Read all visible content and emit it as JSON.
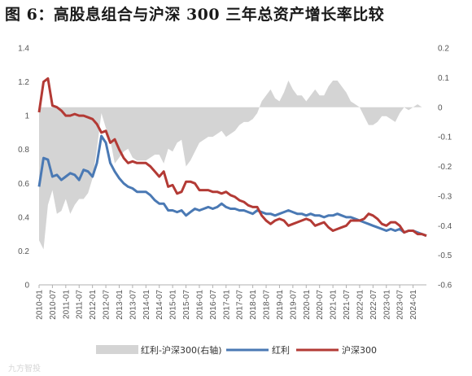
{
  "figure_title": "图 6：高股息组合与沪深 300 三年总资产增长率比较",
  "watermark": "九方智投",
  "colors": {
    "dividend": "#4a79b4",
    "hs300": "#b33a35",
    "diff": "#d4d4d4",
    "axis": "#b0b0b0"
  },
  "chart_data": {
    "type": "line",
    "title": "",
    "xlabel": "",
    "ylabel": "",
    "ylim": [
      0,
      1.4
    ],
    "yticks": [
      "0",
      "0.2",
      "0.4",
      "0.6",
      "0.8",
      "1",
      "1.2",
      "1.4"
    ],
    "y2lim": [
      -0.6,
      0.2
    ],
    "y2ticks": [
      "-0.6",
      "-0.5",
      "-0.4",
      "-0.3",
      "-0.2",
      "-0.1",
      "0",
      "0.1",
      "0.2"
    ],
    "legend_position": "bottom",
    "grid": false,
    "x": [
      "2010-01",
      "2010-03",
      "2010-05",
      "2010-07",
      "2010-09",
      "2010-11",
      "2011-01",
      "2011-03",
      "2011-05",
      "2011-07",
      "2011-09",
      "2011-11",
      "2012-01",
      "2012-03",
      "2012-05",
      "2012-07",
      "2012-09",
      "2012-11",
      "2013-01",
      "2013-03",
      "2013-05",
      "2013-07",
      "2013-09",
      "2013-11",
      "2014-01",
      "2014-03",
      "2014-05",
      "2014-07",
      "2014-09",
      "2014-11",
      "2015-01",
      "2015-03",
      "2015-05",
      "2015-07",
      "2015-09",
      "2015-11",
      "2016-01",
      "2016-03",
      "2016-05",
      "2016-07",
      "2016-09",
      "2016-11",
      "2017-01",
      "2017-03",
      "2017-05",
      "2017-07",
      "2017-09",
      "2017-11",
      "2018-01",
      "2018-03",
      "2018-05",
      "2018-07",
      "2018-09",
      "2018-11",
      "2019-01",
      "2019-03",
      "2019-05",
      "2019-07",
      "2019-09",
      "2019-11",
      "2020-01",
      "2020-03",
      "2020-05",
      "2020-07",
      "2020-09",
      "2020-11",
      "2021-01",
      "2021-03",
      "2021-05",
      "2021-07",
      "2021-09",
      "2021-11",
      "2022-01",
      "2022-03",
      "2022-05",
      "2022-07",
      "2022-09",
      "2022-11",
      "2023-01",
      "2023-03",
      "2023-05",
      "2023-07",
      "2023-09",
      "2023-11",
      "2024-01",
      "2024-03",
      "2024-05",
      "2024-07"
    ],
    "xticks": [
      "2010-01",
      "2010-07",
      "2011-01",
      "2011-07",
      "2012-01",
      "2012-07",
      "2013-01",
      "2013-07",
      "2014-01",
      "2014-07",
      "2015-01",
      "2015-07",
      "2016-01",
      "2016-07",
      "2017-01",
      "2017-07",
      "2018-01",
      "2018-07",
      "2019-01",
      "2019-07",
      "2020-01",
      "2020-07",
      "2021-01",
      "2021-07",
      "2022-01",
      "2022-07",
      "2023-01",
      "2023-07",
      "2024-01"
    ],
    "series": [
      {
        "name": "红利-沪深300(右轴)",
        "type": "area",
        "axis": "right",
        "values": [
          -0.45,
          -0.48,
          -0.33,
          -0.28,
          -0.36,
          -0.35,
          -0.31,
          -0.36,
          -0.33,
          -0.31,
          -0.31,
          -0.29,
          -0.24,
          -0.14,
          -0.02,
          -0.07,
          -0.11,
          -0.19,
          -0.17,
          -0.15,
          -0.14,
          -0.17,
          -0.18,
          -0.18,
          -0.18,
          -0.17,
          -0.16,
          -0.16,
          -0.19,
          -0.14,
          -0.15,
          -0.12,
          -0.11,
          -0.2,
          -0.18,
          -0.15,
          -0.12,
          -0.11,
          -0.1,
          -0.1,
          -0.09,
          -0.08,
          -0.1,
          -0.09,
          -0.08,
          -0.06,
          -0.05,
          -0.05,
          -0.04,
          -0.02,
          0.02,
          0.04,
          0.06,
          0.03,
          0.02,
          0.05,
          0.09,
          0.06,
          0.04,
          0.04,
          0.02,
          0.04,
          0.06,
          0.04,
          0.04,
          0.07,
          0.09,
          0.09,
          0.07,
          0.05,
          0.02,
          0.01,
          0.0,
          -0.03,
          -0.06,
          -0.06,
          -0.05,
          -0.03,
          -0.03,
          -0.04,
          -0.05,
          -0.02,
          0.0,
          -0.01,
          0.0,
          0.01,
          0.0,
          0.0
        ]
      },
      {
        "name": "红利",
        "type": "line",
        "axis": "left",
        "values": [
          0.58,
          0.75,
          0.74,
          0.64,
          0.65,
          0.62,
          0.64,
          0.66,
          0.65,
          0.62,
          0.68,
          0.67,
          0.64,
          0.72,
          0.88,
          0.84,
          0.72,
          0.67,
          0.63,
          0.6,
          0.58,
          0.57,
          0.55,
          0.55,
          0.55,
          0.53,
          0.5,
          0.48,
          0.48,
          0.44,
          0.44,
          0.43,
          0.44,
          0.41,
          0.43,
          0.45,
          0.44,
          0.45,
          0.46,
          0.45,
          0.46,
          0.48,
          0.46,
          0.45,
          0.45,
          0.44,
          0.44,
          0.43,
          0.42,
          0.44,
          0.43,
          0.42,
          0.42,
          0.41,
          0.42,
          0.43,
          0.44,
          0.43,
          0.42,
          0.42,
          0.41,
          0.42,
          0.41,
          0.41,
          0.4,
          0.41,
          0.41,
          0.42,
          0.41,
          0.4,
          0.4,
          0.39,
          0.38,
          0.37,
          0.36,
          0.35,
          0.34,
          0.33,
          0.32,
          0.33,
          0.32,
          0.33,
          0.31,
          0.32,
          0.32,
          0.31,
          0.3,
          0.29
        ]
      },
      {
        "name": "沪深300",
        "type": "line",
        "axis": "left",
        "values": [
          1.02,
          1.2,
          1.22,
          1.06,
          1.05,
          1.03,
          1.0,
          1.0,
          1.01,
          1.0,
          1.0,
          0.99,
          0.98,
          0.95,
          0.9,
          0.91,
          0.84,
          0.86,
          0.8,
          0.75,
          0.72,
          0.73,
          0.72,
          0.72,
          0.72,
          0.7,
          0.67,
          0.64,
          0.67,
          0.58,
          0.59,
          0.54,
          0.55,
          0.61,
          0.61,
          0.6,
          0.56,
          0.56,
          0.56,
          0.55,
          0.55,
          0.54,
          0.55,
          0.53,
          0.52,
          0.5,
          0.49,
          0.47,
          0.46,
          0.46,
          0.41,
          0.38,
          0.36,
          0.38,
          0.39,
          0.38,
          0.35,
          0.36,
          0.37,
          0.38,
          0.39,
          0.38,
          0.35,
          0.36,
          0.37,
          0.34,
          0.32,
          0.33,
          0.34,
          0.35,
          0.38,
          0.38,
          0.38,
          0.39,
          0.42,
          0.41,
          0.39,
          0.36,
          0.35,
          0.37,
          0.37,
          0.35,
          0.31,
          0.32,
          0.32,
          0.3,
          0.3,
          0.29
        ]
      }
    ]
  }
}
